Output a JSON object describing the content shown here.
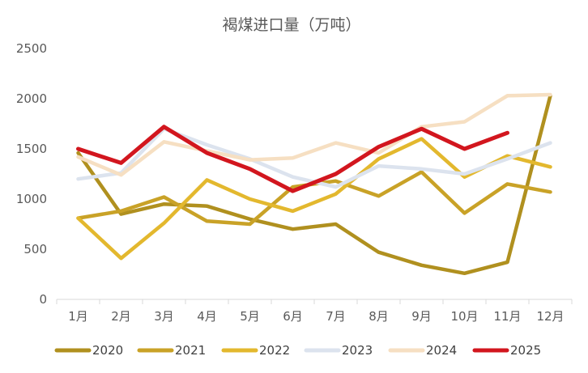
{
  "chart_data": {
    "type": "line",
    "title": "褐煤进口量（万吨）",
    "categories": [
      "1月",
      "2月",
      "3月",
      "4月",
      "5月",
      "6月",
      "7月",
      "8月",
      "9月",
      "10月",
      "11月",
      "12月"
    ],
    "ylim": [
      0,
      2500
    ],
    "yticks": [
      0,
      500,
      1000,
      1500,
      2000,
      2500
    ],
    "grid": false,
    "legend_position": "bottom",
    "series": [
      {
        "name": "2020",
        "color": "#B0901F",
        "width": 4.5,
        "values": [
          1460,
          850,
          950,
          930,
          800,
          700,
          750,
          470,
          340,
          260,
          370,
          2030
        ]
      },
      {
        "name": "2021",
        "color": "#C9A227",
        "width": 4.5,
        "values": [
          810,
          880,
          1020,
          780,
          750,
          1120,
          1180,
          1030,
          1270,
          860,
          1150,
          1070
        ]
      },
      {
        "name": "2022",
        "color": "#E3B82E",
        "width": 4.5,
        "values": [
          810,
          410,
          760,
          1190,
          1000,
          880,
          1050,
          1400,
          1600,
          1220,
          1430,
          1320
        ]
      },
      {
        "name": "2023",
        "color": "#DCE3EE",
        "width": 4.5,
        "values": [
          1200,
          1260,
          1700,
          1540,
          1400,
          1220,
          1120,
          1330,
          1300,
          1250,
          1400,
          1560
        ]
      },
      {
        "name": "2024",
        "color": "#F6DFC2",
        "width": 4.5,
        "values": [
          1420,
          1240,
          1570,
          1480,
          1390,
          1410,
          1560,
          1460,
          1720,
          1770,
          2030,
          2040
        ]
      },
      {
        "name": "2025",
        "color": "#D2161E",
        "width": 5,
        "values": [
          1500,
          1360,
          1720,
          1460,
          1300,
          1080,
          1250,
          1520,
          1700,
          1500,
          1660,
          null
        ]
      }
    ]
  }
}
